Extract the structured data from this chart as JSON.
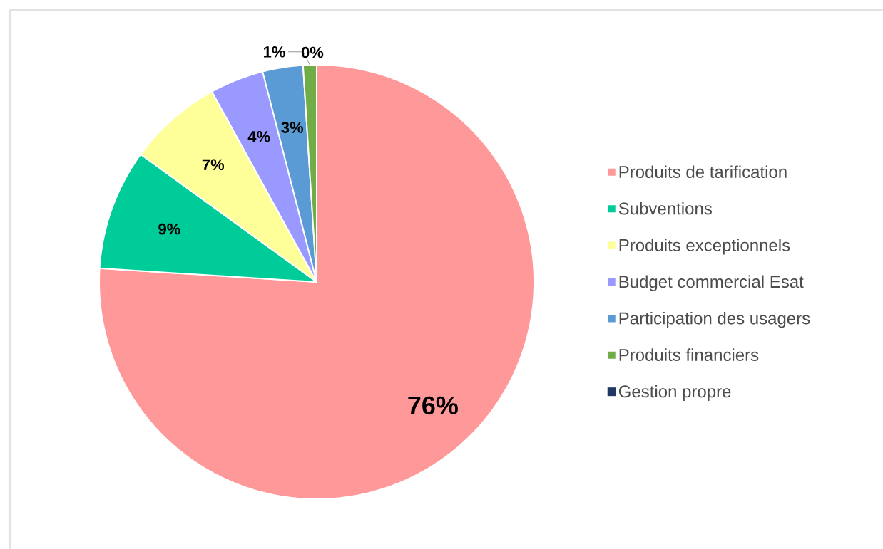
{
  "chart_data": {
    "type": "pie",
    "categories": [
      "Produits de tarification",
      "Subventions",
      "Produits exceptionnels",
      "Budget commercial Esat",
      "Participation des usagers",
      "Produits financiers",
      "Gestion propre"
    ],
    "values": [
      76,
      9,
      7,
      4,
      3,
      1,
      0
    ],
    "colors": [
      "#ff9999",
      "#00cc99",
      "#ffff99",
      "#9999ff",
      "#5b9bd5",
      "#70ad47",
      "#1f3864"
    ],
    "value_labels": [
      "76%",
      "9%",
      "7%",
      "4%",
      "3%",
      "1%",
      "0%"
    ],
    "legend": "right"
  }
}
